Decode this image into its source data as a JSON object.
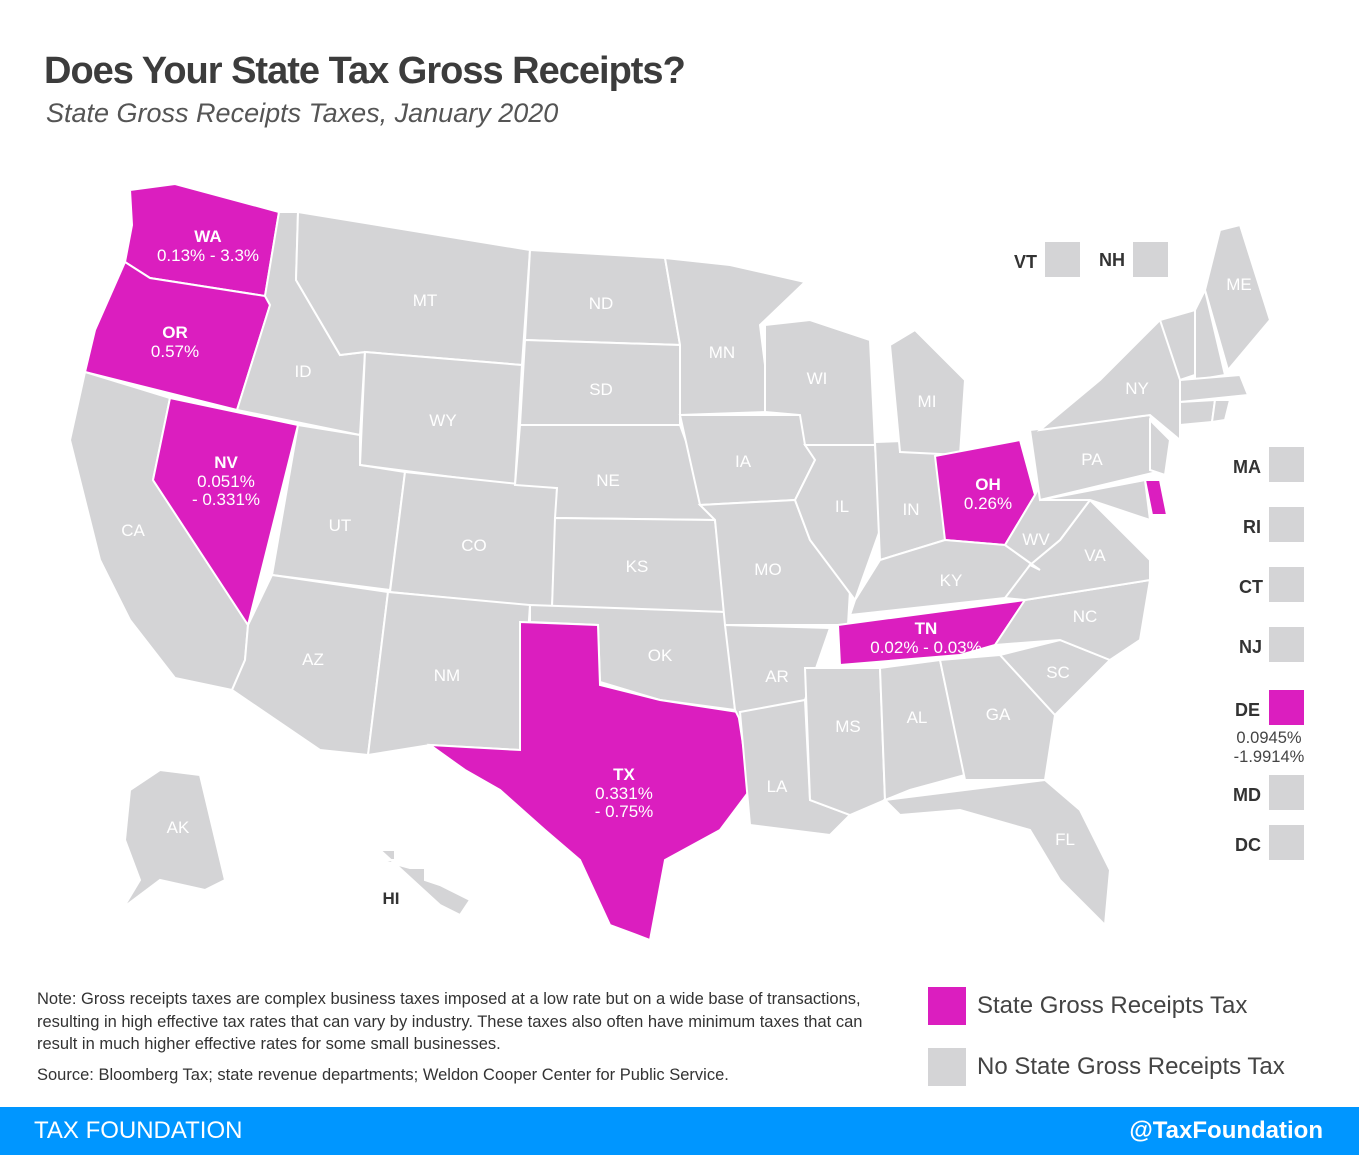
{
  "title": "Does Your State Tax Gross Receipts?",
  "subtitle": "State Gross Receipts Taxes, January 2020",
  "colors": {
    "tax": "#db1ebf",
    "no_tax": "#d4d4d6",
    "footer": "#0096ff"
  },
  "states": {
    "WA": {
      "tax": true,
      "rate": "0.13% - 3.3%"
    },
    "OR": {
      "tax": true,
      "rate": "0.57%"
    },
    "NV": {
      "tax": true,
      "rate": "0.051%",
      "rate2": "- 0.331%"
    },
    "TX": {
      "tax": true,
      "rate": "0.331%",
      "rate2": "- 0.75%"
    },
    "OH": {
      "tax": true,
      "rate": "0.26%"
    },
    "TN": {
      "tax": true,
      "rate": "0.02% - 0.03%"
    },
    "DE": {
      "tax": true,
      "rate": "0.0945%",
      "rate2": "-1.9914%"
    },
    "CA": {
      "tax": false
    },
    "ID": {
      "tax": false
    },
    "MT": {
      "tax": false
    },
    "WY": {
      "tax": false
    },
    "UT": {
      "tax": false
    },
    "CO": {
      "tax": false
    },
    "AZ": {
      "tax": false
    },
    "NM": {
      "tax": false
    },
    "ND": {
      "tax": false
    },
    "SD": {
      "tax": false
    },
    "NE": {
      "tax": false
    },
    "KS": {
      "tax": false
    },
    "OK": {
      "tax": false
    },
    "MN": {
      "tax": false
    },
    "IA": {
      "tax": false
    },
    "MO": {
      "tax": false
    },
    "AR": {
      "tax": false
    },
    "LA": {
      "tax": false
    },
    "WI": {
      "tax": false
    },
    "IL": {
      "tax": false
    },
    "IN": {
      "tax": false
    },
    "MI": {
      "tax": false
    },
    "KY": {
      "tax": false
    },
    "MS": {
      "tax": false
    },
    "AL": {
      "tax": false
    },
    "GA": {
      "tax": false
    },
    "FL": {
      "tax": false
    },
    "SC": {
      "tax": false
    },
    "NC": {
      "tax": false
    },
    "VA": {
      "tax": false
    },
    "WV": {
      "tax": false
    },
    "PA": {
      "tax": false
    },
    "NY": {
      "tax": false
    },
    "NJ": {
      "tax": false
    },
    "MD": {
      "tax": false
    },
    "VT": {
      "tax": false
    },
    "NH": {
      "tax": false
    },
    "ME": {
      "tax": false
    },
    "MA": {
      "tax": false
    },
    "CT": {
      "tax": false
    },
    "RI": {
      "tax": false
    },
    "DC": {
      "tax": false
    },
    "AK": {
      "tax": false
    },
    "HI": {
      "tax": false
    }
  },
  "legend": [
    {
      "label": "State Gross Receipts Tax",
      "tax": true
    },
    {
      "label": "No State Gross Receipts Tax",
      "tax": false
    }
  ],
  "note": "Note: Gross receipts taxes are complex business taxes imposed at a low rate but on a wide base of transactions, resulting in high effective tax rates that can vary by industry. These taxes also often have minimum taxes that can result in much higher effective rates for some small businesses.",
  "source": "Source: Bloomberg Tax; state revenue departments; Weldon Cooper Center for Public Service.",
  "footer": {
    "left": "TAX FOUNDATION",
    "right": "@TaxFoundation"
  }
}
